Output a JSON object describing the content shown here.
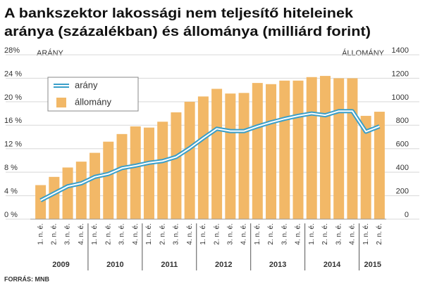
{
  "chart_data": {
    "type": "bar-line",
    "title": [
      "A bankszektor lakossági nem teljesítő hiteleinek",
      "aránya (százalékban) és állománya (milliárd forint)"
    ],
    "y_label": "ARÁNY",
    "y2_label": "ÁLLOMÁNY",
    "source": "FORRÁS: MNB",
    "categories": [
      "1. n. é.",
      "2. n. é.",
      "3. n. é.",
      "4. n. é.",
      "1. n. é.",
      "2. n. é.",
      "3. n. é.",
      "4. n. é.",
      "1. n. é.",
      "2. n. é.",
      "3. n. é.",
      "4. n. é.",
      "1. n. é.",
      "2. n. é.",
      "3. n. é.",
      "4. n. é.",
      "1. n. é.",
      "2. n. é.",
      "3. n. é.",
      "4. n. é.",
      "1. n. é.",
      "2. n. é.",
      "3. n. é.",
      "4. n. é.",
      "1. n. é.",
      "2. n. é."
    ],
    "category_groups": [
      "2009",
      "2010",
      "2011",
      "2012",
      "2013",
      "2014",
      "2015"
    ],
    "series": [
      {
        "name": "arány",
        "type": "line",
        "color": "#3a9fc9",
        "values": [
          3.2,
          4.4,
          5.6,
          6.1,
          7.2,
          7.7,
          8.7,
          9.1,
          9.6,
          9.9,
          10.6,
          12.1,
          13.8,
          15.4,
          15.0,
          15.0,
          15.8,
          16.5,
          17.1,
          17.6,
          18.0,
          17.7,
          18.4,
          18.4,
          14.9,
          15.8
        ]
      },
      {
        "name": "állomány",
        "type": "bar",
        "axis": "y2",
        "color": "#f2b867",
        "values": [
          290,
          360,
          440,
          490,
          565,
          660,
          725,
          790,
          780,
          830,
          910,
          1000,
          1045,
          1110,
          1070,
          1075,
          1160,
          1150,
          1180,
          1180,
          1210,
          1220,
          1200,
          1200,
          880,
          915
        ]
      }
    ],
    "ylim": [
      0,
      28
    ],
    "yticks": [
      {
        "value": 0,
        "label": "0 %"
      },
      {
        "value": 4,
        "label": "4 %"
      },
      {
        "value": 8,
        "label": "8 %"
      },
      {
        "value": 12,
        "label": "12 %"
      },
      {
        "value": 16,
        "label": "16 %"
      },
      {
        "value": 20,
        "label": "20 %"
      },
      {
        "value": 24,
        "label": "24 %"
      },
      {
        "value": 28,
        "label": "28%"
      }
    ],
    "y2lim": [
      0,
      1400
    ],
    "y2ticks": [
      0,
      200,
      400,
      600,
      800,
      1000,
      1200,
      1400
    ],
    "grid": true
  }
}
